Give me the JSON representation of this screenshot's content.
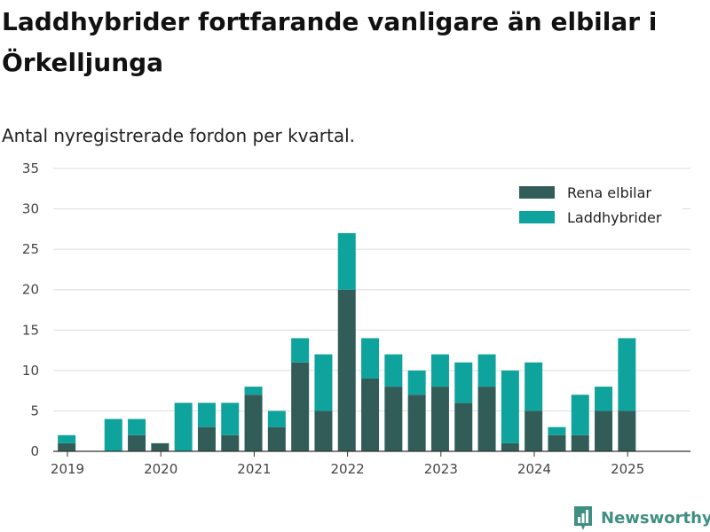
{
  "title": "Laddhybrider fortfarande vanligare än elbilar i Örkelljunga",
  "subtitle": "Antal nyregistrerade fordon per kvartal.",
  "brand": {
    "name": "Newsworthy",
    "icon": "newsworthy-logo-icon",
    "color": "#3f8f82"
  },
  "colors": {
    "grid": "#dddddd",
    "axis": "#333333"
  },
  "chart_data": {
    "type": "bar",
    "stacked": true,
    "x": [
      "2019-Q1",
      "2019-Q2",
      "2019-Q3",
      "2019-Q4",
      "2020-Q1",
      "2020-Q2",
      "2020-Q3",
      "2020-Q4",
      "2021-Q1",
      "2021-Q2",
      "2021-Q3",
      "2021-Q4",
      "2022-Q1",
      "2022-Q2",
      "2022-Q3",
      "2022-Q4",
      "2023-Q1",
      "2023-Q2",
      "2023-Q3",
      "2023-Q4",
      "2024-Q1",
      "2024-Q2",
      "2024-Q3",
      "2024-Q4",
      "2025-Q1",
      "2025-Q2"
    ],
    "series": [
      {
        "name": "Rena elbilar",
        "color": "#325c58",
        "values": [
          1,
          0,
          0,
          2,
          1,
          0,
          3,
          2,
          7,
          3,
          11,
          5,
          20,
          9,
          8,
          7,
          8,
          6,
          8,
          1,
          5,
          2,
          2,
          5,
          5,
          0
        ]
      },
      {
        "name": "Laddhybrider",
        "color": "#0ea39c",
        "values": [
          1,
          0,
          4,
          2,
          0,
          6,
          3,
          4,
          1,
          2,
          3,
          7,
          7,
          5,
          4,
          3,
          4,
          5,
          4,
          9,
          6,
          1,
          5,
          3,
          9,
          0
        ]
      }
    ],
    "xticks": [
      "2019",
      "2020",
      "2021",
      "2022",
      "2023",
      "2024",
      "2025"
    ],
    "yticks": [
      0,
      5,
      10,
      15,
      20,
      25,
      30,
      35
    ],
    "ylim": [
      0,
      35
    ],
    "xlabel": "",
    "ylabel": "",
    "grid": true,
    "legend": "top-right"
  }
}
